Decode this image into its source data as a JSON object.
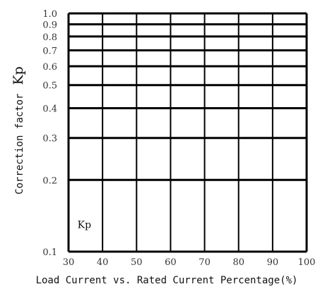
{
  "chart_data": {
    "type": "line",
    "xscale": "linear",
    "yscale": "log",
    "xlim": [
      30,
      100
    ],
    "ylim": [
      0.1,
      1.0
    ],
    "x_ticks": [
      "30",
      "40",
      "50",
      "60",
      "70",
      "80",
      "90",
      "100"
    ],
    "x_tick_values": [
      30,
      40,
      50,
      60,
      70,
      80,
      90,
      100
    ],
    "y_ticks": [
      "1.0",
      "0.9",
      "0.8",
      "0.7",
      "0.6",
      "0.5",
      "0.4",
      "0.3",
      "0.2",
      "0.1"
    ],
    "y_tick_values": [
      1.0,
      0.9,
      0.8,
      0.7,
      0.6,
      0.5,
      0.4,
      0.3,
      0.2,
      0.1
    ],
    "ylabel": "Correction factor",
    "ylabel_symbol": "Kp",
    "xlabel": "Load Current vs. Rated Current Percentage(%)",
    "grid": true,
    "series": [],
    "annotations": [
      {
        "text": "Kp",
        "x": 32,
        "y": 0.13
      }
    ],
    "colors": {
      "grid": "#000000",
      "text": "#333333",
      "background": "#ffffff"
    }
  }
}
